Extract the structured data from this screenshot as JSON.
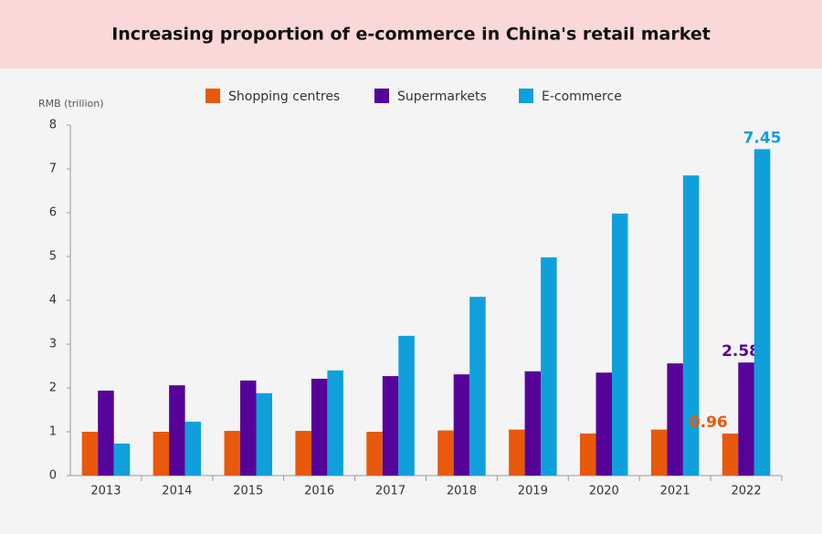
{
  "chart_data": {
    "type": "bar",
    "title": "Increasing proportion of e-commerce in China's retail market",
    "y_label": "RMB (trillion)",
    "categories": [
      "2013",
      "2014",
      "2015",
      "2016",
      "2017",
      "2018",
      "2019",
      "2020",
      "2021",
      "2022"
    ],
    "series": [
      {
        "name": "Shopping centres",
        "color": "#e8590c",
        "values": [
          1.0,
          1.0,
          1.02,
          1.02,
          1.0,
          1.03,
          1.05,
          0.96,
          1.05,
          0.96
        ],
        "value_labels": [
          null,
          null,
          null,
          null,
          null,
          null,
          null,
          null,
          null,
          "0.96"
        ]
      },
      {
        "name": "Supermarkets",
        "color": "#56039a",
        "values": [
          1.94,
          2.06,
          2.17,
          2.21,
          2.27,
          2.31,
          2.38,
          2.35,
          2.56,
          2.58
        ],
        "value_labels": [
          null,
          null,
          null,
          null,
          null,
          null,
          null,
          null,
          null,
          "2.58"
        ]
      },
      {
        "name": "E-commerce",
        "color": "#0fa0dc",
        "values": [
          0.73,
          1.23,
          1.88,
          2.4,
          3.19,
          4.08,
          4.98,
          5.98,
          6.85,
          7.45
        ],
        "value_labels": [
          null,
          null,
          null,
          null,
          null,
          null,
          null,
          null,
          null,
          "7.45"
        ]
      }
    ],
    "ylim": [
      0,
      8
    ],
    "yticks": [
      0,
      1,
      2,
      3,
      4,
      5,
      6,
      7,
      8
    ],
    "grid": false
  }
}
